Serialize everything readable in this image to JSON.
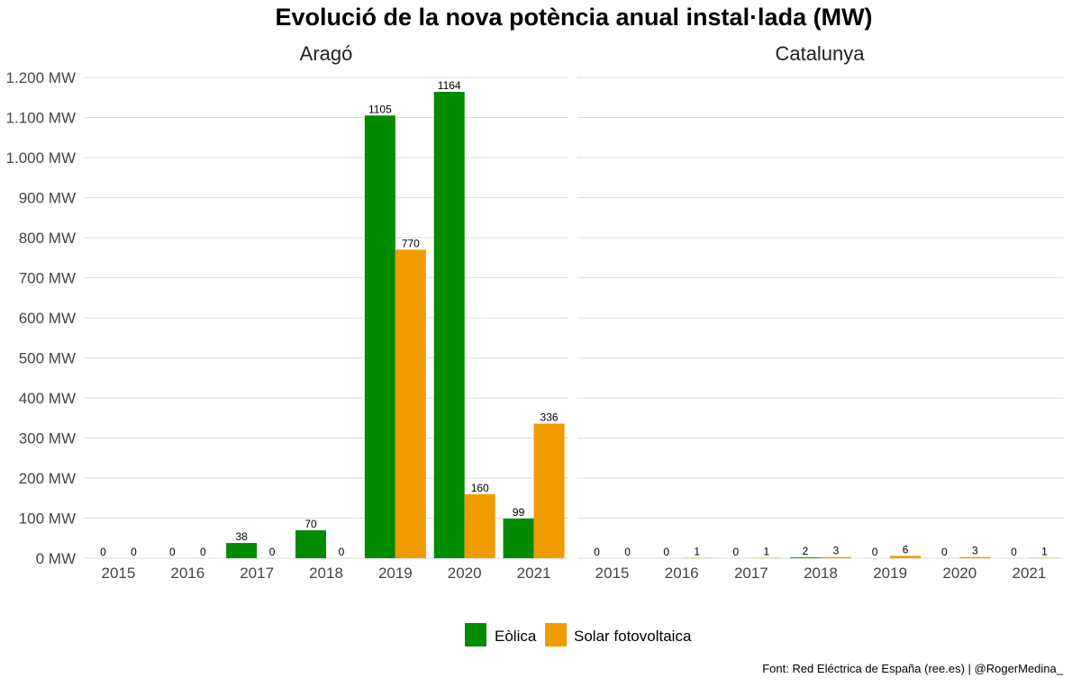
{
  "chart_data": {
    "type": "bar",
    "title": "Evolució de la nova potència anual instal·lada (MW)",
    "caption": "Font: Red Eléctrica de España (ree.es) | @RogerMedina_",
    "ylim": [
      0,
      1200
    ],
    "yticks": [
      "0 MW",
      "100 MW",
      "200 MW",
      "300 MW",
      "400 MW",
      "500 MW",
      "600 MW",
      "700 MW",
      "800 MW",
      "900 MW",
      "1.000 MW",
      "1.100 MW",
      "1.200 MW"
    ],
    "ytick_values": [
      0,
      100,
      200,
      300,
      400,
      500,
      600,
      700,
      800,
      900,
      1000,
      1100,
      1200
    ],
    "grid": true,
    "legend_position": "bottom",
    "categories": [
      "2015",
      "2016",
      "2017",
      "2018",
      "2019",
      "2020",
      "2021"
    ],
    "legend": [
      {
        "name": "Eòlica",
        "color": "#008b00"
      },
      {
        "name": "Solar fotovoltaica",
        "color": "#f09c00"
      }
    ],
    "facets": [
      {
        "name": "Aragó",
        "series": [
          {
            "name": "Eòlica",
            "color": "#008b00",
            "values": [
              0,
              0,
              38,
              70,
              1105,
              1164,
              99
            ]
          },
          {
            "name": "Solar fotovoltaica",
            "color": "#f09c00",
            "values": [
              0,
              0,
              0,
              0,
              770,
              160,
              336
            ]
          }
        ]
      },
      {
        "name": "Catalunya",
        "series": [
          {
            "name": "Eòlica",
            "color": "#008b00",
            "values": [
              0,
              0,
              0,
              2,
              0,
              0,
              0
            ]
          },
          {
            "name": "Solar fotovoltaica",
            "color": "#f09c00",
            "values": [
              0,
              1,
              1,
              3,
              6,
              3,
              1
            ]
          }
        ]
      }
    ]
  }
}
